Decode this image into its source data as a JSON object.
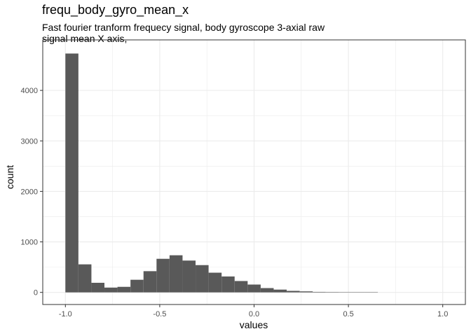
{
  "chart_data": {
    "type": "bar",
    "title": "frequ_body_gyro_mean_x",
    "subtitle": "Fast fourier tranform frequecy signal, body gyroscope 3-axial raw signal mean X axis,",
    "xlabel": "values",
    "ylabel": "count",
    "xlim": [
      -1.12,
      1.12
    ],
    "ylim": [
      -240,
      5000
    ],
    "x_ticks": [
      -1.0,
      -0.5,
      0.0,
      0.5,
      1.0
    ],
    "x_tick_labels": [
      "-1.0",
      "-0.5",
      "0.0",
      "0.5",
      "1.0"
    ],
    "y_ticks": [
      0,
      1000,
      2000,
      3000,
      4000
    ],
    "y_tick_labels": [
      "0",
      "1000",
      "2000",
      "3000",
      "4000"
    ],
    "bin_width": 0.0689,
    "bins": [
      {
        "x0": -1.0,
        "count": 4730
      },
      {
        "x0": -0.931,
        "count": 555
      },
      {
        "x0": -0.862,
        "count": 190
      },
      {
        "x0": -0.793,
        "count": 95
      },
      {
        "x0": -0.724,
        "count": 110
      },
      {
        "x0": -0.655,
        "count": 250
      },
      {
        "x0": -0.586,
        "count": 420
      },
      {
        "x0": -0.517,
        "count": 665
      },
      {
        "x0": -0.448,
        "count": 735
      },
      {
        "x0": -0.379,
        "count": 630
      },
      {
        "x0": -0.31,
        "count": 540
      },
      {
        "x0": -0.241,
        "count": 390
      },
      {
        "x0": -0.172,
        "count": 315
      },
      {
        "x0": -0.103,
        "count": 225
      },
      {
        "x0": -0.034,
        "count": 155
      },
      {
        "x0": 0.035,
        "count": 85
      },
      {
        "x0": 0.104,
        "count": 55
      },
      {
        "x0": 0.173,
        "count": 30
      },
      {
        "x0": 0.242,
        "count": 20
      },
      {
        "x0": 0.311,
        "count": 10
      },
      {
        "x0": 0.38,
        "count": 8
      },
      {
        "x0": 0.449,
        "count": 5
      },
      {
        "x0": 0.518,
        "count": 4
      },
      {
        "x0": 0.587,
        "count": 3
      }
    ],
    "bar_color": "#595959",
    "grid": true,
    "grid_color": "#ebebeb",
    "panel_border_color": "#333333",
    "text_color": "#4d4d4d",
    "legend": "none"
  }
}
